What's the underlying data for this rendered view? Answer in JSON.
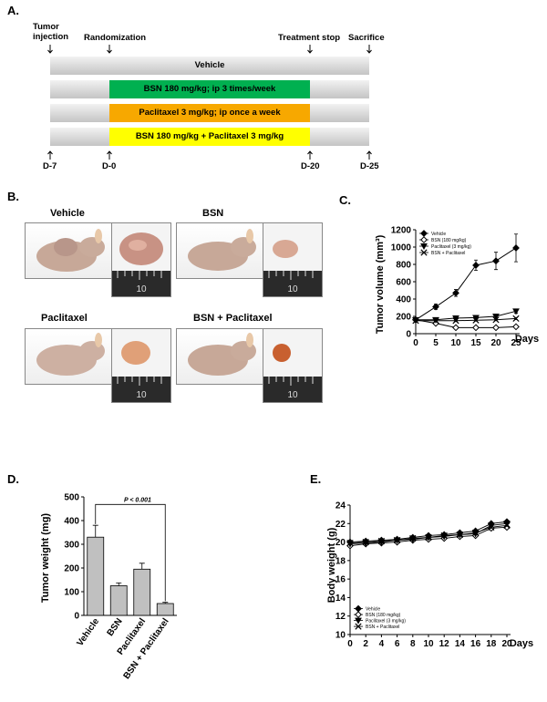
{
  "panelA": {
    "label": "A.",
    "events": {
      "tumor_injection": "Tumor\ninjection",
      "randomization": "Randomization",
      "treatment_stop": "Treatment stop",
      "sacrifice": "Sacrifice"
    },
    "groups": [
      {
        "label": "Vehicle",
        "color": "#d9d9d9"
      },
      {
        "label": "BSN 180 mg/kg; ip 3 times/week",
        "color": "#00b050"
      },
      {
        "label": "Paclitaxel 3 mg/kg; ip once a week",
        "color": "#f7a800"
      },
      {
        "label": "BSN 180 mg/kg + Paclitaxel 3 mg/kg",
        "color": "#ffff00"
      }
    ],
    "days": [
      "D-7",
      "D-0",
      "D-20",
      "D-25"
    ]
  },
  "panelB": {
    "label": "B.",
    "photos": [
      {
        "label": "Vehicle",
        "scale": "10"
      },
      {
        "label": "BSN",
        "scale": "10"
      },
      {
        "label": "Paclitaxel",
        "scale": "10"
      },
      {
        "label": "BSN + Paclitaxel",
        "scale": "10"
      }
    ]
  },
  "panelC_label": "C.",
  "panelD_label": "D.",
  "panelE_label": "E.",
  "chart_data": [
    {
      "id": "C",
      "type": "line",
      "title": "",
      "xlabel": "Days",
      "ylabel": "Tumor volume (mm³)",
      "x": [
        0,
        5,
        10,
        15,
        20,
        25
      ],
      "xlim": [
        0,
        25
      ],
      "ylim": [
        0,
        1200
      ],
      "yticks": [
        0,
        200,
        400,
        600,
        800,
        1000,
        1200
      ],
      "grid": false,
      "legend": "top-left",
      "series": [
        {
          "name": "Vehicle",
          "marker": "diamond-filled",
          "values": [
            160,
            310,
            470,
            790,
            840,
            990
          ],
          "errors": [
            20,
            30,
            40,
            60,
            100,
            160
          ]
        },
        {
          "name": "BSN (180 mg/kg)",
          "marker": "diamond-open",
          "values": [
            160,
            120,
            70,
            70,
            70,
            80
          ],
          "errors": [
            10,
            10,
            8,
            8,
            8,
            8
          ]
        },
        {
          "name": "Paclitaxel (3 mg/kg)",
          "marker": "triangle-down",
          "values": [
            160,
            160,
            180,
            185,
            200,
            260
          ],
          "errors": [
            10,
            15,
            15,
            15,
            20,
            25
          ]
        },
        {
          "name": "BSN + Paclitaxel",
          "marker": "x",
          "values": [
            150,
            150,
            150,
            155,
            160,
            175
          ],
          "errors": [
            10,
            10,
            10,
            10,
            10,
            12
          ]
        }
      ]
    },
    {
      "id": "D",
      "type": "bar",
      "title": "",
      "xlabel": "",
      "ylabel": "Tumor weight (mg)",
      "categories": [
        "Vehicle",
        "BSN",
        "Paclitaxel",
        "BSN + Paclitaxel"
      ],
      "values": [
        330,
        125,
        195,
        50
      ],
      "errors": [
        50,
        12,
        25,
        5
      ],
      "ylim": [
        0,
        500
      ],
      "yticks": [
        0,
        100,
        200,
        300,
        400,
        500
      ],
      "annotation": "P < 0.001",
      "color": "#c0c0c0"
    },
    {
      "id": "E",
      "type": "line",
      "title": "",
      "xlabel": "Days",
      "ylabel": "Body weight (g)",
      "x": [
        0,
        2,
        4,
        6,
        8,
        10,
        12,
        14,
        16,
        18,
        20
      ],
      "xlim": [
        0,
        20
      ],
      "ylim": [
        10,
        24
      ],
      "yticks": [
        10,
        12,
        14,
        16,
        18,
        20,
        22,
        24
      ],
      "legend": "bottom-left",
      "series": [
        {
          "name": "Vehicle",
          "marker": "diamond-filled",
          "values": [
            20.0,
            20.1,
            20.2,
            20.3,
            20.5,
            20.7,
            20.8,
            21.0,
            21.2,
            22.0,
            22.2
          ]
        },
        {
          "name": "BSN (180 mg/kg)",
          "marker": "diamond-open",
          "values": [
            19.6,
            19.8,
            19.9,
            20.0,
            20.2,
            20.3,
            20.4,
            20.6,
            20.7,
            21.5,
            21.6
          ]
        },
        {
          "name": "Paclitaxel (3 mg/kg)",
          "marker": "triangle-down",
          "values": [
            19.8,
            19.9,
            20.0,
            20.2,
            20.3,
            20.5,
            20.6,
            20.8,
            20.9,
            21.8,
            22.0
          ]
        },
        {
          "name": "BSN + Paclitaxel",
          "marker": "x",
          "values": [
            19.9,
            20.0,
            20.1,
            20.2,
            20.4,
            20.5,
            20.7,
            20.8,
            21.0,
            21.6,
            21.8
          ]
        }
      ]
    }
  ]
}
